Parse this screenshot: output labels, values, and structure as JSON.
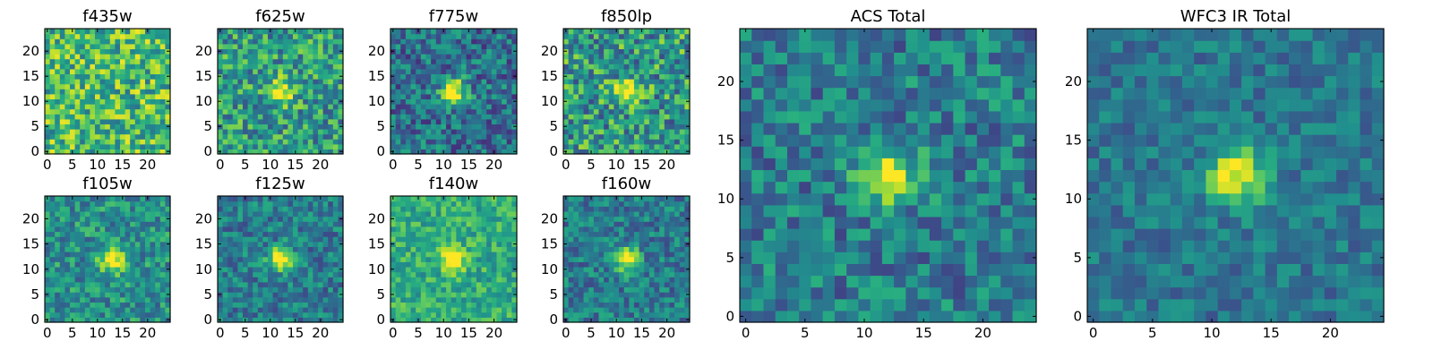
{
  "figure": {
    "background": "#ffffff"
  },
  "chart_data": [
    {
      "type": "heatmap",
      "title": "f435w",
      "grid_size": 25,
      "xticks": [
        "0",
        "5",
        "10",
        "15",
        "20"
      ],
      "yticks": [
        "0",
        "5",
        "10",
        "15",
        "20"
      ],
      "xlim": [
        -0.5,
        24.5
      ],
      "ylim": [
        -0.5,
        24.5
      ],
      "colormap": "viridis",
      "grid": false,
      "peak": {
        "x": 12,
        "y": 12,
        "strength": 0.0
      },
      "background_level": 0.68,
      "noise": 0.3
    },
    {
      "type": "heatmap",
      "title": "f625w",
      "grid_size": 25,
      "xticks": [
        "0",
        "5",
        "10",
        "15",
        "20"
      ],
      "yticks": [
        "0",
        "5",
        "10",
        "15",
        "20"
      ],
      "xlim": [
        -0.5,
        24.5
      ],
      "ylim": [
        -0.5,
        24.5
      ],
      "colormap": "viridis",
      "grid": false,
      "peak": {
        "x": 12,
        "y": 12,
        "strength": 0.55
      },
      "background_level": 0.55,
      "noise": 0.28
    },
    {
      "type": "heatmap",
      "title": "f775w",
      "grid_size": 25,
      "xticks": [
        "0",
        "5",
        "10",
        "15",
        "20"
      ],
      "yticks": [
        "0",
        "5",
        "10",
        "15",
        "20"
      ],
      "xlim": [
        -0.5,
        24.5
      ],
      "ylim": [
        -0.5,
        24.5
      ],
      "colormap": "viridis",
      "grid": false,
      "peak": {
        "x": 12,
        "y": 12,
        "strength": 0.75
      },
      "background_level": 0.38,
      "noise": 0.25
    },
    {
      "type": "heatmap",
      "title": "f850lp",
      "grid_size": 25,
      "xticks": [
        "0",
        "5",
        "10",
        "15",
        "20"
      ],
      "yticks": [
        "0",
        "5",
        "10",
        "15",
        "20"
      ],
      "xlim": [
        -0.5,
        24.5
      ],
      "ylim": [
        -0.5,
        24.5
      ],
      "colormap": "viridis",
      "grid": false,
      "peak": {
        "x": 12,
        "y": 12,
        "strength": 0.45
      },
      "background_level": 0.55,
      "noise": 0.32
    },
    {
      "type": "heatmap",
      "title": "f105w",
      "grid_size": 25,
      "xticks": [
        "0",
        "5",
        "10",
        "15",
        "20"
      ],
      "yticks": [
        "0",
        "5",
        "10",
        "15",
        "20"
      ],
      "xlim": [
        -0.5,
        24.5
      ],
      "ylim": [
        -0.5,
        24.5
      ],
      "colormap": "viridis",
      "grid": false,
      "peak": {
        "x": 13,
        "y": 12,
        "strength": 0.6
      },
      "background_level": 0.5,
      "noise": 0.22
    },
    {
      "type": "heatmap",
      "title": "f125w",
      "grid_size": 25,
      "xticks": [
        "0",
        "5",
        "10",
        "15",
        "20"
      ],
      "yticks": [
        "0",
        "5",
        "10",
        "15",
        "20"
      ],
      "xlim": [
        -0.5,
        24.5
      ],
      "ylim": [
        -0.5,
        24.5
      ],
      "colormap": "viridis",
      "grid": false,
      "peak": {
        "x": 12,
        "y": 12,
        "strength": 0.65
      },
      "background_level": 0.42,
      "noise": 0.2
    },
    {
      "type": "heatmap",
      "title": "f140w",
      "grid_size": 25,
      "xticks": [
        "0",
        "5",
        "10",
        "15",
        "20"
      ],
      "yticks": [
        "0",
        "5",
        "10",
        "15",
        "20"
      ],
      "xlim": [
        -0.5,
        24.5
      ],
      "ylim": [
        -0.5,
        24.5
      ],
      "colormap": "viridis",
      "grid": false,
      "peak": {
        "x": 12,
        "y": 12,
        "strength": 0.45
      },
      "background_level": 0.62,
      "noise": 0.18
    },
    {
      "type": "heatmap",
      "title": "f160w",
      "grid_size": 25,
      "xticks": [
        "0",
        "5",
        "10",
        "15",
        "20"
      ],
      "yticks": [
        "0",
        "5",
        "10",
        "15",
        "20"
      ],
      "xlim": [
        -0.5,
        24.5
      ],
      "ylim": [
        -0.5,
        24.5
      ],
      "colormap": "viridis",
      "grid": false,
      "peak": {
        "x": 12,
        "y": 12,
        "strength": 0.65
      },
      "background_level": 0.42,
      "noise": 0.2
    },
    {
      "type": "heatmap",
      "title": "ACS Total",
      "grid_size": 25,
      "xticks": [
        "0",
        "5",
        "10",
        "15",
        "20"
      ],
      "yticks": [
        "0",
        "5",
        "10",
        "15",
        "20"
      ],
      "xlim": [
        -0.5,
        24.5
      ],
      "ylim": [
        -0.5,
        24.5
      ],
      "colormap": "viridis",
      "grid": false,
      "peak": {
        "x": 12,
        "y": 12,
        "strength": 0.62
      },
      "background_level": 0.42,
      "noise": 0.22
    },
    {
      "type": "heatmap",
      "title": "WFC3 IR Total",
      "grid_size": 25,
      "xticks": [
        "0",
        "5",
        "10",
        "15",
        "20"
      ],
      "yticks": [
        "0",
        "5",
        "10",
        "15",
        "20"
      ],
      "xlim": [
        -0.5,
        24.5
      ],
      "ylim": [
        -0.5,
        24.5
      ],
      "colormap": "viridis",
      "grid": false,
      "peak": {
        "x": 12,
        "y": 12,
        "strength": 0.62
      },
      "background_level": 0.4,
      "noise": 0.15
    }
  ]
}
